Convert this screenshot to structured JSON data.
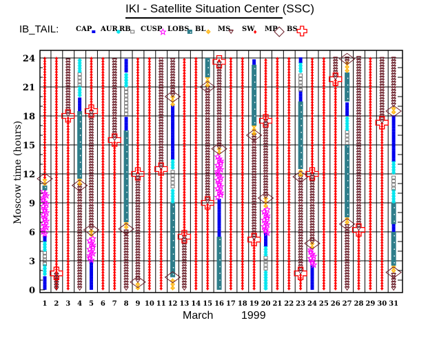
{
  "title": "IKI - Satellite Situation Center (SSC)",
  "chart_data": {
    "type": "scatter",
    "title": "IKI - Satellite Situation Center (SSC)",
    "legend_title": "IB_TAIL:",
    "legend_placement": "top-left",
    "legend": [
      {
        "key": "CAP",
        "label": "CAP",
        "color": "#0000ee",
        "marker": "dot"
      },
      {
        "key": "AUR",
        "label": "AUR",
        "color": "#00e5ee",
        "marker": "asterisk"
      },
      {
        "key": "RB",
        "label": "RB",
        "color": "#707070",
        "marker": "square-open"
      },
      {
        "key": "CUSP",
        "label": "CUSP",
        "color": "#ff00ff",
        "marker": "star"
      },
      {
        "key": "LOBS",
        "label": "LOBS",
        "color": "#2e7d8a",
        "marker": "square-filled"
      },
      {
        "key": "BL",
        "label": "BL",
        "color": "#ffb000",
        "marker": "sun"
      },
      {
        "key": "MS",
        "label": "MS",
        "color": "#6b1f2a",
        "marker": "triangle-down"
      },
      {
        "key": "SW",
        "label": "SW",
        "color": "#ff0000",
        "marker": "arrow"
      },
      {
        "key": "MP",
        "label": "MP",
        "color": "#6b1f2a",
        "marker": "diamond"
      },
      {
        "key": "BS",
        "label": "BS",
        "color": "#ff0000",
        "marker": "cross"
      }
    ],
    "legend_labels_shown": [
      "CAP",
      "AUR",
      "RB",
      "CUSP",
      "LOBS",
      "BL",
      "MS",
      "SW",
      "MP",
      "BS"
    ],
    "xlabel": "March",
    "xlabel2": "1999",
    "ylabel": "Moscow time (hours)",
    "xlim": [
      1,
      31
    ],
    "ylim": [
      0,
      24
    ],
    "y_ticks": [
      "0",
      "3",
      "6",
      "9",
      "12",
      "15",
      "18",
      "21",
      "24"
    ],
    "x_ticks": [
      "1",
      "2",
      "3",
      "4",
      "5",
      "6",
      "7",
      "8",
      "9",
      "10",
      "11",
      "12",
      "13",
      "14",
      "15",
      "16",
      "17",
      "18",
      "19",
      "20",
      "21",
      "22",
      "23",
      "24",
      "25",
      "26",
      "27",
      "28",
      "29",
      "30",
      "31"
    ],
    "grid": true,
    "days": [
      {
        "day": 1,
        "segments": [
          [
            "CAP",
            0,
            1.5
          ],
          [
            "AUR",
            1.5,
            2.5
          ],
          [
            "RB",
            2.5,
            4
          ],
          [
            "AUR",
            4,
            5
          ],
          [
            "CAP",
            5,
            5.7
          ],
          [
            "CUSP",
            5.7,
            10.3
          ],
          [
            "LOBS",
            10.3,
            10.8
          ],
          [
            "BL",
            10.8,
            11.5
          ],
          [
            "SW",
            11.5,
            24
          ]
        ],
        "mp": [
          11.5
        ]
      },
      {
        "day": 2,
        "segments": [
          [
            "SW",
            0,
            1.7
          ],
          [
            "MS",
            0,
            1.7
          ],
          [
            "SW",
            1.7,
            24
          ]
        ],
        "bs": [
          1.7
        ]
      },
      {
        "day": 3,
        "segments": [
          [
            "SW",
            0,
            18
          ],
          [
            "MS",
            18,
            24
          ]
        ],
        "bs": [
          18
        ]
      },
      {
        "day": 4,
        "segments": [
          [
            "MS",
            0,
            10.8
          ],
          [
            "BL",
            10.8,
            11.5
          ],
          [
            "LOBS",
            11.5,
            18.5
          ],
          [
            "CAP",
            18.5,
            20
          ],
          [
            "AUR",
            20,
            21
          ],
          [
            "RB",
            21,
            22.5
          ],
          [
            "AUR",
            22.5,
            24
          ]
        ],
        "mp": [
          10.8
        ]
      },
      {
        "day": 5,
        "segments": [
          [
            "CAP",
            0,
            3
          ],
          [
            "CUSP",
            3,
            5.5
          ],
          [
            "BL",
            5.5,
            6.2
          ],
          [
            "MS",
            6.2,
            18.5
          ],
          [
            "SW",
            18.5,
            24
          ]
        ],
        "mp": [
          6.2
        ],
        "bs": [
          18.5
        ]
      },
      {
        "day": 6,
        "segments": [
          [
            "SW",
            0,
            24
          ]
        ]
      },
      {
        "day": 7,
        "segments": [
          [
            "SW",
            0,
            15.5
          ],
          [
            "MS",
            15.5,
            24
          ]
        ],
        "bs": [
          15.5
        ]
      },
      {
        "day": 8,
        "segments": [
          [
            "MS",
            0,
            6.3
          ],
          [
            "BL",
            6.3,
            7
          ],
          [
            "LOBS",
            7,
            16.5
          ],
          [
            "CAP",
            16.5,
            18
          ],
          [
            "RB",
            18,
            21
          ],
          [
            "AUR",
            21,
            22.5
          ],
          [
            "CAP",
            22.5,
            24
          ]
        ],
        "mp": [
          6.3
        ]
      },
      {
        "day": 9,
        "segments": [
          [
            "BL",
            0,
            0.8
          ],
          [
            "MS",
            0.8,
            12
          ],
          [
            "SW",
            12,
            24
          ]
        ],
        "mp": [
          0.8
        ],
        "bs": [
          12
        ]
      },
      {
        "day": 10,
        "segments": [
          [
            "SW",
            0,
            24
          ]
        ]
      },
      {
        "day": 11,
        "segments": [
          [
            "SW",
            0,
            12.5
          ],
          [
            "MS",
            12.5,
            24
          ]
        ],
        "bs": [
          12.5
        ]
      },
      {
        "day": 12,
        "segments": [
          [
            "BL",
            0,
            1.3
          ],
          [
            "LOBS",
            1.3,
            9
          ],
          [
            "AUR",
            9,
            10.5
          ],
          [
            "RB",
            10.5,
            12.5
          ],
          [
            "AUR",
            12.5,
            13.5
          ],
          [
            "CAP",
            13.5,
            19
          ],
          [
            "BL",
            19,
            20
          ],
          [
            "MS",
            20,
            24
          ]
        ],
        "mp": [
          1.3,
          20
        ]
      },
      {
        "day": 13,
        "segments": [
          [
            "MS",
            0,
            5.5
          ],
          [
            "SW",
            5.5,
            24
          ]
        ],
        "bs": [
          5.5
        ]
      },
      {
        "day": 14,
        "segments": [
          [
            "SW",
            0,
            24
          ]
        ]
      },
      {
        "day": 15,
        "segments": [
          [
            "SW",
            0,
            9
          ],
          [
            "MS",
            9,
            21
          ],
          [
            "BL",
            21,
            22
          ],
          [
            "LOBS",
            22,
            24
          ]
        ],
        "bs": [
          9
        ],
        "mp": [
          21
        ]
      },
      {
        "day": 16,
        "segments": [
          [
            "LOBS",
            0,
            5.5
          ],
          [
            "CAP",
            5.5,
            9.5
          ],
          [
            "CUSP",
            9.5,
            14
          ],
          [
            "BL",
            14,
            14.6
          ],
          [
            "MS",
            14.6,
            23.6
          ],
          [
            "SW",
            23.6,
            24
          ]
        ],
        "mp": [
          14.6
        ],
        "bs": [
          23.6
        ]
      },
      {
        "day": 17,
        "segments": [
          [
            "SW",
            0,
            24
          ]
        ]
      },
      {
        "day": 18,
        "segments": [
          [
            "SW",
            0,
            24
          ]
        ]
      },
      {
        "day": 19,
        "segments": [
          [
            "SW",
            0,
            5.2
          ],
          [
            "MS",
            5.2,
            16
          ],
          [
            "BL",
            16,
            17
          ],
          [
            "LOBS",
            17,
            23.3
          ],
          [
            "CAP",
            23.3,
            24
          ]
        ],
        "bs": [
          5.2
        ],
        "mp": [
          16
        ]
      },
      {
        "day": 20,
        "segments": [
          [
            "AUR",
            0,
            2
          ],
          [
            "RB",
            2,
            3.5
          ],
          [
            "AUR",
            3.5,
            4.5
          ],
          [
            "CAP",
            4.5,
            5.8
          ],
          [
            "CUSP",
            5.8,
            8.5
          ],
          [
            "BL",
            8.5,
            9.5
          ],
          [
            "MS",
            9.5,
            17.5
          ],
          [
            "SW",
            17.5,
            24
          ]
        ],
        "mp": [
          9.5
        ],
        "bs": [
          17.5
        ]
      },
      {
        "day": 21,
        "segments": [
          [
            "SW",
            0,
            24
          ]
        ]
      },
      {
        "day": 22,
        "segments": [
          [
            "SW",
            0,
            24
          ]
        ]
      },
      {
        "day": 23,
        "segments": [
          [
            "SW",
            0,
            1.7
          ],
          [
            "MS",
            1.7,
            11.7
          ],
          [
            "BL",
            11.7,
            12.5
          ],
          [
            "LOBS",
            12.5,
            19.5
          ],
          [
            "CAP",
            19.5,
            20.5
          ],
          [
            "RB",
            20.5,
            22.5
          ],
          [
            "AUR",
            22.5,
            23.5
          ],
          [
            "CAP",
            23.5,
            24
          ]
        ],
        "bs": [
          1.7
        ],
        "mp": [
          11.7
        ]
      },
      {
        "day": 24,
        "segments": [
          [
            "CAP",
            0,
            2.5
          ],
          [
            "CUSP",
            2.5,
            4.2
          ],
          [
            "BL",
            4.2,
            4.8
          ],
          [
            "MS",
            4.8,
            12
          ],
          [
            "SW",
            12,
            24
          ]
        ],
        "mp": [
          4.8
        ],
        "bs": [
          12
        ]
      },
      {
        "day": 25,
        "segments": [
          [
            "SW",
            0,
            24
          ]
        ]
      },
      {
        "day": 26,
        "segments": [
          [
            "SW",
            0,
            21.8
          ],
          [
            "MS",
            21.8,
            24
          ]
        ],
        "bs": [
          21.8
        ]
      },
      {
        "day": 27,
        "segments": [
          [
            "MS",
            0,
            6.8
          ],
          [
            "BL",
            6.8,
            7.5
          ],
          [
            "LOBS",
            7.5,
            15
          ],
          [
            "RB",
            15,
            16.5
          ],
          [
            "AUR",
            16.5,
            18
          ],
          [
            "CAP",
            18,
            19.5
          ],
          [
            "LOBS",
            19.5,
            22.5
          ],
          [
            "BL",
            22.5,
            23.5
          ],
          [
            "MS",
            23.5,
            24
          ]
        ],
        "mp": [
          6.8,
          23.9
        ]
      },
      {
        "day": 28,
        "segments": [
          [
            "SW",
            0,
            6.2
          ],
          [
            "MS",
            6.2,
            24
          ]
        ],
        "bs": [
          6.2
        ]
      },
      {
        "day": 29,
        "segments": [
          [
            "SW",
            0,
            24
          ]
        ]
      },
      {
        "day": 30,
        "segments": [
          [
            "SW",
            0,
            17.3
          ],
          [
            "MS",
            17.3,
            24
          ]
        ],
        "bs": [
          17.3
        ]
      },
      {
        "day": 31,
        "segments": [
          [
            "MS",
            0,
            1.8
          ],
          [
            "BL",
            1.8,
            2.5
          ],
          [
            "LOBS",
            2.5,
            6
          ],
          [
            "CAP",
            6,
            6.8
          ],
          [
            "LOBS",
            6.8,
            9
          ],
          [
            "AUR",
            9,
            10.3
          ],
          [
            "RB",
            10.3,
            12
          ],
          [
            "AUR",
            12,
            13.3
          ],
          [
            "CAP",
            13.3,
            18.2
          ],
          [
            "BL",
            18.2,
            19
          ],
          [
            "MS",
            19,
            24
          ]
        ],
        "mp": [
          1.8,
          18.5
        ]
      }
    ]
  }
}
